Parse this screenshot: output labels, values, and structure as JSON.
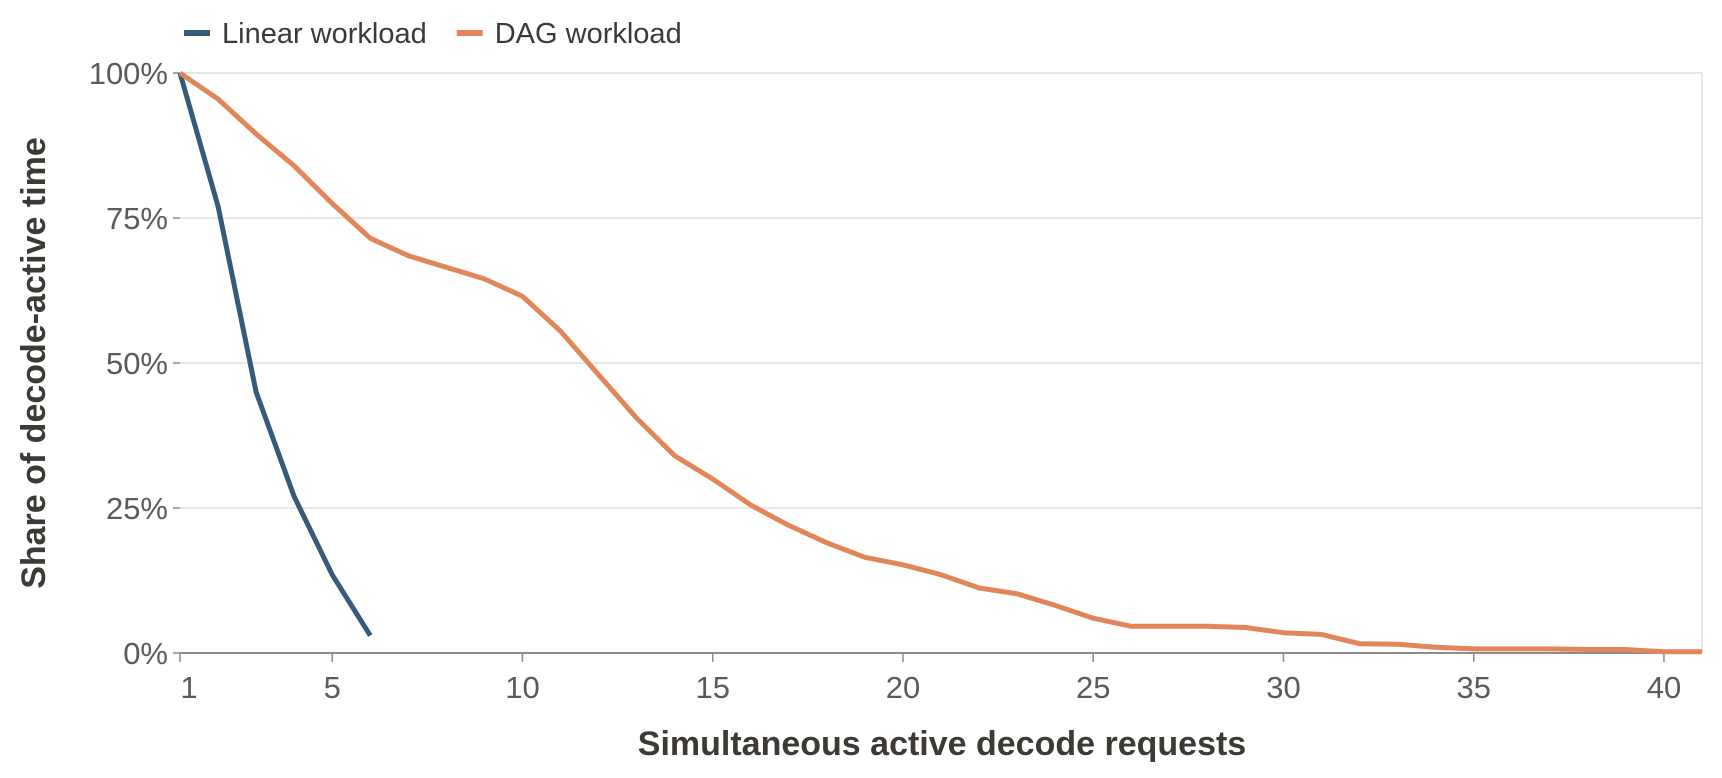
{
  "chart_data": {
    "type": "line",
    "title": "",
    "xlabel": "Simultaneous active decode requests",
    "ylabel": "Share of decode-active time",
    "xlim": [
      1,
      41
    ],
    "ylim": [
      0,
      100
    ],
    "x_ticks": [
      1,
      5,
      10,
      15,
      20,
      25,
      30,
      35,
      40
    ],
    "x_tick_labels": [
      "1",
      "5",
      "10",
      "15",
      "20",
      "25",
      "30",
      "35",
      "40"
    ],
    "y_ticks": [
      0,
      25,
      50,
      75,
      100
    ],
    "y_tick_labels": [
      "0%",
      "25%",
      "50%",
      "75%",
      "100%"
    ],
    "grid": "horizontal",
    "legend_position": "top-left",
    "series": [
      {
        "name": "Linear workload",
        "color": "#355a7a",
        "x": [
          1,
          2,
          3,
          4,
          5,
          6
        ],
        "values": [
          100,
          77,
          45,
          27,
          13.5,
          3
        ]
      },
      {
        "name": "DAG workload",
        "color": "#e2865a",
        "x": [
          1,
          2,
          3,
          4,
          5,
          6,
          7,
          8,
          9,
          10,
          11,
          12,
          13,
          14,
          15,
          16,
          17,
          18,
          19,
          20,
          21,
          22,
          23,
          24,
          25,
          26,
          27,
          28,
          29,
          30,
          31,
          32,
          33,
          34,
          35,
          36,
          37,
          38,
          39,
          40,
          41
        ],
        "values": [
          100,
          95.5,
          89.5,
          84,
          77.5,
          71.5,
          68.5,
          66.5,
          64.5,
          61.5,
          55.5,
          48,
          40.5,
          34,
          30,
          25.5,
          22,
          19,
          16.5,
          15.2,
          13.5,
          11.2,
          10.2,
          8.2,
          6,
          4.6,
          4.6,
          4.6,
          4.4,
          3.5,
          3.2,
          1.6,
          1.5,
          1,
          0.7,
          0.7,
          0.7,
          0.6,
          0.6,
          0.2,
          0.2
        ]
      }
    ]
  }
}
